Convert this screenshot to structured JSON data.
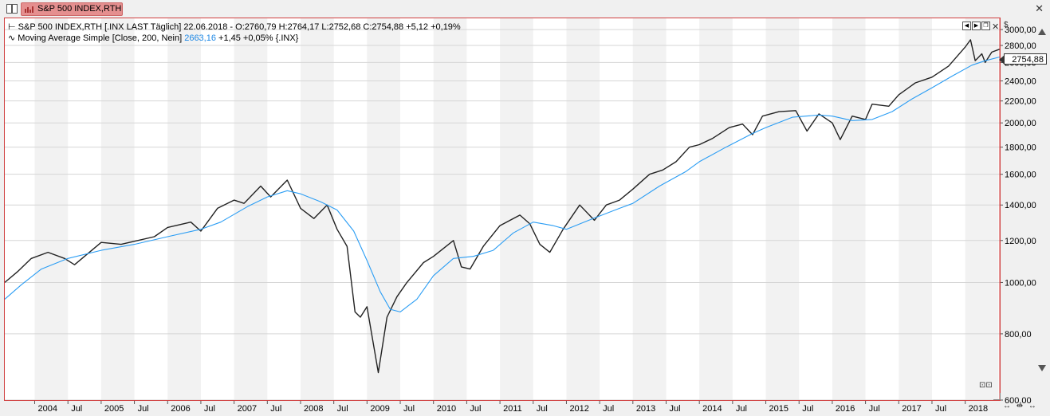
{
  "window": {
    "tab_label": "S&P 500 INDEX,RTH",
    "close_glyph": "✕"
  },
  "legend": {
    "main_prefix": "⊢",
    "main_text": "S&P 500 INDEX,RTH [.INX LAST Täglich] 22.06.2018 - O:2760,79 H:2764,17 L:2752,68 C:2754,88 +5,12 +0,19%",
    "ma_prefix": "∿",
    "ma_label": "Moving Average Simple [Close, 200, Nein]",
    "ma_value": "2663,16",
    "ma_rest": "+1,45 +0,05% {.INX}"
  },
  "price_tag": "2754,88",
  "currency": "$",
  "chart_data": {
    "type": "line",
    "y_scale": "log",
    "ylim": [
      600,
      3150
    ],
    "y_ticks": [
      {
        "value": 600,
        "label": "600,00"
      },
      {
        "value": 800,
        "label": "800,00"
      },
      {
        "value": 1000,
        "label": "1000,00"
      },
      {
        "value": 1200,
        "label": "1200,00"
      },
      {
        "value": 1400,
        "label": "1400,00"
      },
      {
        "value": 1600,
        "label": "1600,00"
      },
      {
        "value": 1800,
        "label": "1800,00"
      },
      {
        "value": 2000,
        "label": "2000,00"
      },
      {
        "value": 2200,
        "label": "2200,00"
      },
      {
        "value": 2400,
        "label": "2400,00"
      },
      {
        "value": 2600,
        "label": "2600,00"
      },
      {
        "value": 2800,
        "label": "2800,00"
      },
      {
        "value": 3000,
        "label": "3000,00"
      }
    ],
    "xlim": [
      2003.55,
      2018.52
    ],
    "x_ticks": [
      {
        "value": 2004.0,
        "label": "2004"
      },
      {
        "value": 2004.5,
        "label": "Jul"
      },
      {
        "value": 2005.0,
        "label": "2005"
      },
      {
        "value": 2005.5,
        "label": "Jul"
      },
      {
        "value": 2006.0,
        "label": "2006"
      },
      {
        "value": 2006.5,
        "label": "Jul"
      },
      {
        "value": 2007.0,
        "label": "2007"
      },
      {
        "value": 2007.5,
        "label": "Jul"
      },
      {
        "value": 2008.0,
        "label": "2008"
      },
      {
        "value": 2008.5,
        "label": "Jul"
      },
      {
        "value": 2009.0,
        "label": "2009"
      },
      {
        "value": 2009.5,
        "label": "Jul"
      },
      {
        "value": 2010.0,
        "label": "2010"
      },
      {
        "value": 2010.5,
        "label": "Jul"
      },
      {
        "value": 2011.0,
        "label": "2011"
      },
      {
        "value": 2011.5,
        "label": "Jul"
      },
      {
        "value": 2012.0,
        "label": "2012"
      },
      {
        "value": 2012.5,
        "label": "Jul"
      },
      {
        "value": 2013.0,
        "label": "2013"
      },
      {
        "value": 2013.5,
        "label": "Jul"
      },
      {
        "value": 2014.0,
        "label": "2014"
      },
      {
        "value": 2014.5,
        "label": "Jul"
      },
      {
        "value": 2015.0,
        "label": "2015"
      },
      {
        "value": 2015.5,
        "label": "Jul"
      },
      {
        "value": 2016.0,
        "label": "2016"
      },
      {
        "value": 2016.5,
        "label": "Jul"
      },
      {
        "value": 2017.0,
        "label": "2017"
      },
      {
        "value": 2017.5,
        "label": "Jul"
      },
      {
        "value": 2018.0,
        "label": "2018"
      }
    ],
    "series": [
      {
        "name": "S&P 500 INDEX,RTH",
        "color": "#222222",
        "points": [
          [
            2003.55,
            1000
          ],
          [
            2003.75,
            1050
          ],
          [
            2003.95,
            1110
          ],
          [
            2004.2,
            1140
          ],
          [
            2004.45,
            1110
          ],
          [
            2004.6,
            1080
          ],
          [
            2004.75,
            1120
          ],
          [
            2005.0,
            1190
          ],
          [
            2005.3,
            1180
          ],
          [
            2005.55,
            1200
          ],
          [
            2005.8,
            1220
          ],
          [
            2006.0,
            1270
          ],
          [
            2006.35,
            1300
          ],
          [
            2006.5,
            1250
          ],
          [
            2006.75,
            1380
          ],
          [
            2007.0,
            1430
          ],
          [
            2007.15,
            1410
          ],
          [
            2007.4,
            1520
          ],
          [
            2007.55,
            1450
          ],
          [
            2007.8,
            1560
          ],
          [
            2008.0,
            1380
          ],
          [
            2008.2,
            1320
          ],
          [
            2008.4,
            1400
          ],
          [
            2008.55,
            1260
          ],
          [
            2008.7,
            1170
          ],
          [
            2008.82,
            880
          ],
          [
            2008.9,
            860
          ],
          [
            2009.0,
            900
          ],
          [
            2009.17,
            676
          ],
          [
            2009.3,
            860
          ],
          [
            2009.45,
            940
          ],
          [
            2009.6,
            1000
          ],
          [
            2009.85,
            1090
          ],
          [
            2010.0,
            1120
          ],
          [
            2010.3,
            1200
          ],
          [
            2010.42,
            1070
          ],
          [
            2010.55,
            1060
          ],
          [
            2010.75,
            1170
          ],
          [
            2011.0,
            1280
          ],
          [
            2011.3,
            1340
          ],
          [
            2011.45,
            1290
          ],
          [
            2011.6,
            1180
          ],
          [
            2011.75,
            1140
          ],
          [
            2011.95,
            1260
          ],
          [
            2012.2,
            1400
          ],
          [
            2012.42,
            1310
          ],
          [
            2012.6,
            1400
          ],
          [
            2012.8,
            1430
          ],
          [
            2013.0,
            1500
          ],
          [
            2013.25,
            1600
          ],
          [
            2013.45,
            1630
          ],
          [
            2013.65,
            1690
          ],
          [
            2013.85,
            1800
          ],
          [
            2014.0,
            1820
          ],
          [
            2014.2,
            1870
          ],
          [
            2014.45,
            1960
          ],
          [
            2014.65,
            1990
          ],
          [
            2014.8,
            1900
          ],
          [
            2014.95,
            2060
          ],
          [
            2015.2,
            2100
          ],
          [
            2015.45,
            2110
          ],
          [
            2015.62,
            1930
          ],
          [
            2015.8,
            2080
          ],
          [
            2016.0,
            2000
          ],
          [
            2016.12,
            1860
          ],
          [
            2016.3,
            2060
          ],
          [
            2016.5,
            2030
          ],
          [
            2016.6,
            2170
          ],
          [
            2016.85,
            2150
          ],
          [
            2017.0,
            2260
          ],
          [
            2017.25,
            2380
          ],
          [
            2017.5,
            2440
          ],
          [
            2017.75,
            2560
          ],
          [
            2018.0,
            2780
          ],
          [
            2018.08,
            2870
          ],
          [
            2018.15,
            2620
          ],
          [
            2018.25,
            2700
          ],
          [
            2018.3,
            2600
          ],
          [
            2018.4,
            2720
          ],
          [
            2018.52,
            2754.88
          ]
        ]
      },
      {
        "name": "Moving Average Simple [Close, 200, Nein]",
        "color": "#2a9df4",
        "points": [
          [
            2003.55,
            930
          ],
          [
            2003.8,
            990
          ],
          [
            2004.1,
            1060
          ],
          [
            2004.5,
            1110
          ],
          [
            2005.0,
            1150
          ],
          [
            2005.5,
            1180
          ],
          [
            2006.0,
            1220
          ],
          [
            2006.5,
            1260
          ],
          [
            2006.8,
            1300
          ],
          [
            2007.2,
            1390
          ],
          [
            2007.5,
            1450
          ],
          [
            2007.8,
            1490
          ],
          [
            2008.0,
            1470
          ],
          [
            2008.3,
            1420
          ],
          [
            2008.55,
            1370
          ],
          [
            2008.8,
            1250
          ],
          [
            2009.0,
            1100
          ],
          [
            2009.2,
            960
          ],
          [
            2009.35,
            890
          ],
          [
            2009.5,
            880
          ],
          [
            2009.75,
            930
          ],
          [
            2010.0,
            1030
          ],
          [
            2010.3,
            1110
          ],
          [
            2010.6,
            1120
          ],
          [
            2010.9,
            1150
          ],
          [
            2011.2,
            1240
          ],
          [
            2011.5,
            1300
          ],
          [
            2011.8,
            1280
          ],
          [
            2012.0,
            1260
          ],
          [
            2012.4,
            1320
          ],
          [
            2012.8,
            1380
          ],
          [
            2013.0,
            1410
          ],
          [
            2013.4,
            1520
          ],
          [
            2013.8,
            1620
          ],
          [
            2014.0,
            1690
          ],
          [
            2014.4,
            1800
          ],
          [
            2014.8,
            1910
          ],
          [
            2015.0,
            1960
          ],
          [
            2015.4,
            2050
          ],
          [
            2015.8,
            2070
          ],
          [
            2016.0,
            2060
          ],
          [
            2016.3,
            2020
          ],
          [
            2016.6,
            2030
          ],
          [
            2016.9,
            2100
          ],
          [
            2017.2,
            2220
          ],
          [
            2017.5,
            2330
          ],
          [
            2017.8,
            2450
          ],
          [
            2018.1,
            2570
          ],
          [
            2018.3,
            2620
          ],
          [
            2018.52,
            2663.16
          ]
        ]
      }
    ],
    "legend": "top-left",
    "grid": true
  }
}
